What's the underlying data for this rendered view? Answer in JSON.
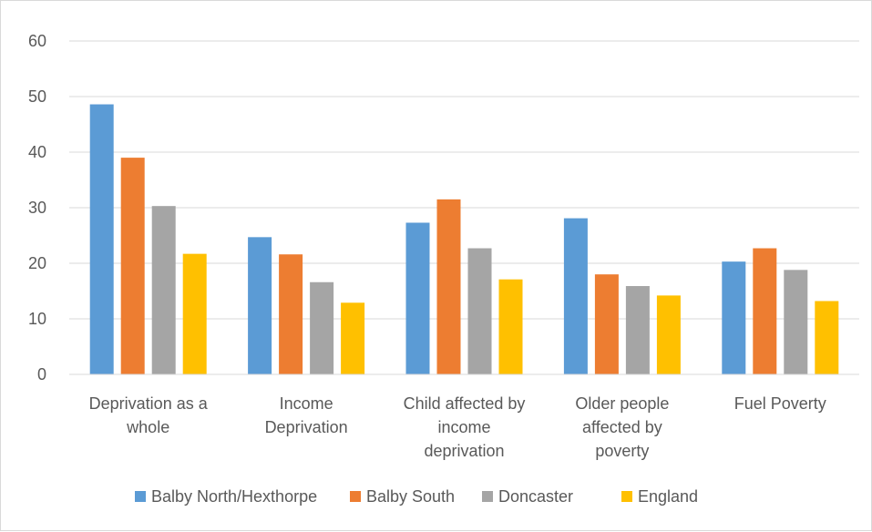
{
  "chart_data": {
    "type": "bar",
    "title": "",
    "xlabel": "",
    "ylabel": "",
    "ylim": [
      0,
      60
    ],
    "yticks": [
      0,
      10,
      20,
      30,
      40,
      50,
      60
    ],
    "grid": true,
    "legend_position": "bottom",
    "categories": [
      "Deprivation as a whole",
      "Income Deprivation",
      "Child affected by income deprivation",
      "Older people affected by poverty",
      "Fuel Poverty"
    ],
    "category_label_lines": [
      [
        "Deprivation as a",
        "whole"
      ],
      [
        "Income",
        "Deprivation"
      ],
      [
        "Child affected by",
        "income",
        "deprivation"
      ],
      [
        "Older people",
        "affected by",
        "poverty"
      ],
      [
        "Fuel Poverty"
      ]
    ],
    "series": [
      {
        "name": "Balby North/Hexthorpe",
        "color": "#5b9bd5",
        "values": [
          48.6,
          24.7,
          27.3,
          28.1,
          20.3
        ]
      },
      {
        "name": "Balby South",
        "color": "#ed7d31",
        "values": [
          39.0,
          21.6,
          31.5,
          18.0,
          22.7
        ]
      },
      {
        "name": "Doncaster",
        "color": "#a5a5a5",
        "values": [
          30.3,
          16.6,
          22.7,
          15.9,
          18.8
        ]
      },
      {
        "name": "England",
        "color": "#ffc000",
        "values": [
          21.7,
          12.9,
          17.1,
          14.2,
          13.2
        ]
      }
    ]
  }
}
